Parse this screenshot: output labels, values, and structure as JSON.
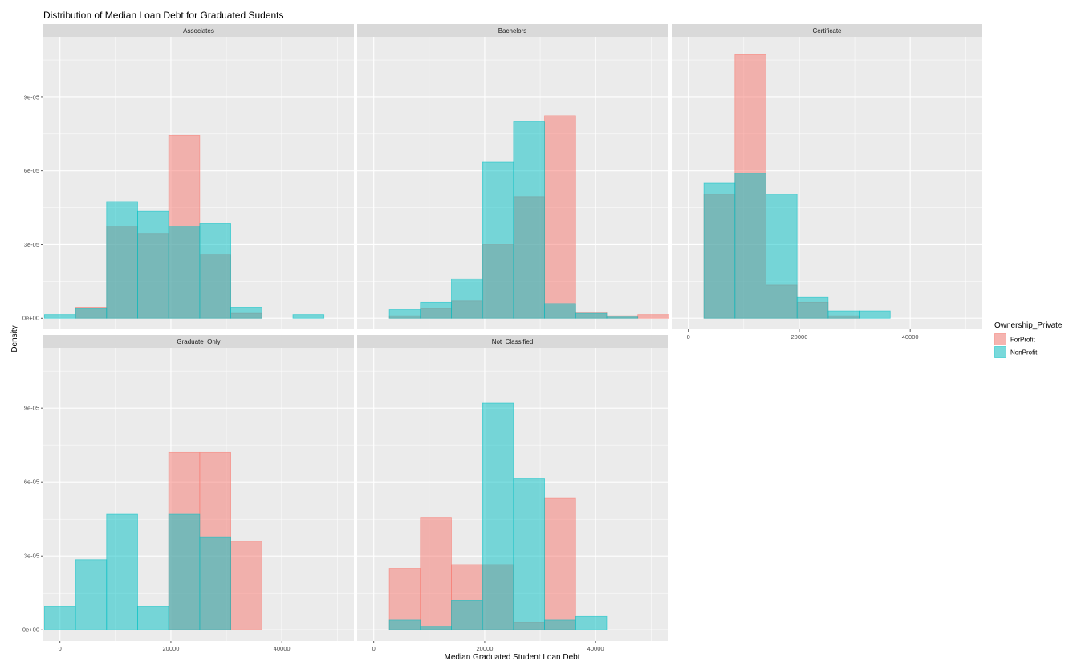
{
  "chart_data": {
    "type": "bar",
    "title": "Distribution of Median Loan Debt for Graduated Sudents",
    "xlabel": "Median Graduated Student Loan Debt",
    "ylabel": "Density",
    "xlim": [
      -3000,
      53000
    ],
    "ylim": [
      -4.5e-06,
      0.0001145
    ],
    "x_ticks": [
      0,
      20000,
      40000
    ],
    "x_tick_labels": [
      "0",
      "20000",
      "40000"
    ],
    "y_ticks": [
      0,
      3e-05,
      6e-05,
      9e-05
    ],
    "y_tick_labels": [
      "0e+00",
      "3e-05",
      "6e-05",
      "9e-05"
    ],
    "bin_edges": [
      -2800,
      2800,
      8400,
      14000,
      19600,
      25200,
      30800,
      36400,
      42000,
      47600,
      53200
    ],
    "grid": true,
    "legend": {
      "title": "Ownership_Private",
      "position": "right",
      "entries": [
        {
          "name": "ForProfit",
          "color": "#F8766D"
        },
        {
          "name": "NonProfit",
          "color": "#00BFC4"
        }
      ]
    },
    "panels": [
      {
        "name": "Associates",
        "series": [
          {
            "name": "ForProfit",
            "values": [
              0,
              4.5e-06,
              3.75e-05,
              3.45e-05,
              7.45e-05,
              2.6e-05,
              2e-06,
              0,
              0,
              0
            ]
          },
          {
            "name": "NonProfit",
            "values": [
              1.5e-06,
              4e-06,
              4.75e-05,
              4.35e-05,
              3.75e-05,
              3.85e-05,
              4.5e-06,
              0,
              1.5e-06,
              0
            ]
          }
        ]
      },
      {
        "name": "Bachelors",
        "series": [
          {
            "name": "ForProfit",
            "values": [
              0,
              1e-06,
              4e-06,
              7e-06,
              3e-05,
              4.95e-05,
              8.25e-05,
              2.5e-06,
              1e-06,
              1.5e-06
            ]
          },
          {
            "name": "NonProfit",
            "values": [
              0,
              3.5e-06,
              6.5e-06,
              1.6e-05,
              6.35e-05,
              8e-05,
              6e-06,
              2e-06,
              5e-07,
              0
            ]
          }
        ]
      },
      {
        "name": "Certificate",
        "series": [
          {
            "name": "ForProfit",
            "values": [
              0,
              5.05e-05,
              0.0001075,
              1.35e-05,
              6.5e-06,
              1e-06,
              0,
              0,
              0,
              0
            ]
          },
          {
            "name": "NonProfit",
            "values": [
              0,
              5.5e-05,
              5.9e-05,
              5.05e-05,
              8.5e-06,
              3e-06,
              3e-06,
              0,
              0,
              0
            ]
          }
        ]
      },
      {
        "name": "Graduate_Only",
        "series": [
          {
            "name": "ForProfit",
            "values": [
              0,
              0,
              0,
              0,
              7.2e-05,
              7.2e-05,
              3.6e-05,
              0,
              0,
              0
            ]
          },
          {
            "name": "NonProfit",
            "values": [
              9.5e-06,
              2.85e-05,
              4.7e-05,
              9.5e-06,
              4.7e-05,
              3.75e-05,
              0,
              0,
              0,
              0
            ]
          }
        ]
      },
      {
        "name": "Not_Classified",
        "series": [
          {
            "name": "ForProfit",
            "values": [
              0,
              2.5e-05,
              4.55e-05,
              2.65e-05,
              2.65e-05,
              3e-06,
              5.35e-05,
              0,
              0,
              0
            ]
          },
          {
            "name": "NonProfit",
            "values": [
              0,
              4e-06,
              1.5e-06,
              1.2e-05,
              9.2e-05,
              6.15e-05,
              4e-06,
              5.5e-06,
              0,
              0
            ]
          }
        ]
      }
    ]
  }
}
